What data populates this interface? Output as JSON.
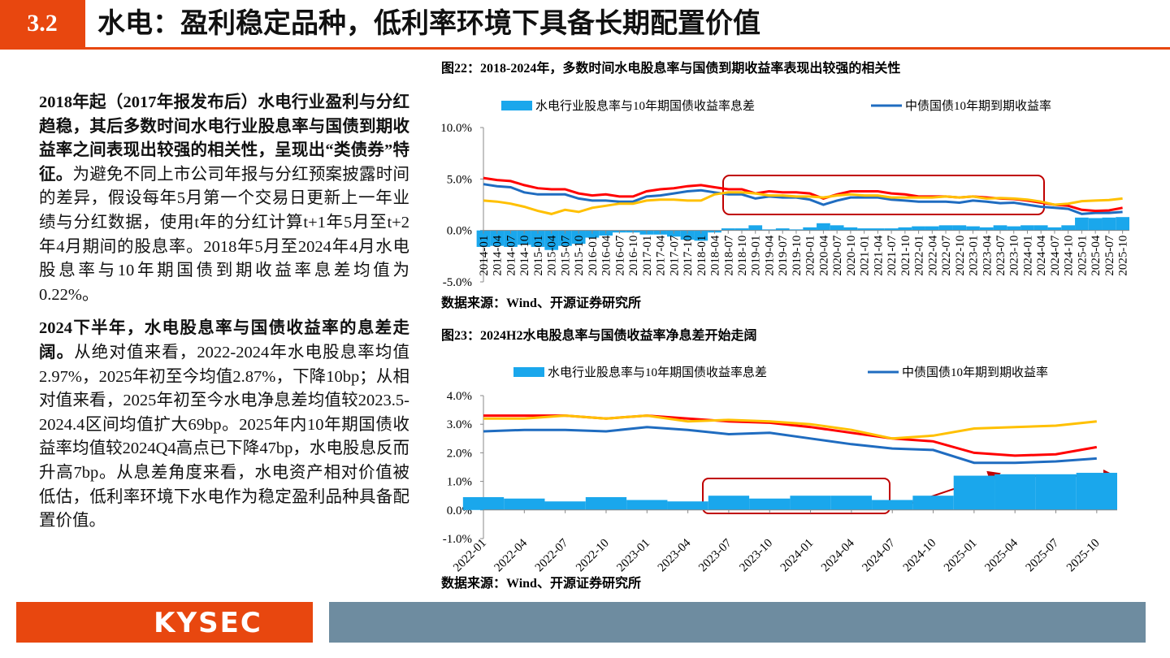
{
  "header": {
    "section": "3.2",
    "title": "水电：盈利稳定品种，低利率环境下具备长期配置价值"
  },
  "body": {
    "paragraphs": [
      {
        "bold": "2018年起（2017年报发布后）水电行业盈利与分红趋稳，其后多数时间水电行业股息率与国债到期收益率之间表现出较强的相关性，呈现出“类债券”特征。",
        "text": "为避免不同上市公司年报与分红预案披露时间的差异，假设每年5月第一个交易日更新上一年业绩与分红数据，使用t年的分红计算t+1年5月至t+2年4月期间的股息率。2018年5月至2024年4月水电股息率与10年期国债到期收益率息差均值为0.22%。"
      },
      {
        "bold": "2024下半年，水电股息率与国债收益率的息差走阔。",
        "text": "从绝对值来看，2022-2024年水电股息率均值2.97%，2025年初至今均值2.87%，下降10bp；从相对值来看，2025年初至今水电净息差均值较2023.5-2024.4区间均值扩大69bp。2025年内10年期国债收益率均值较2024Q4高点已下降47bp，水电股息反而升高7bp。从息差角度来看，水电资产相对价值被低估，低利率环境下水电作为稳定盈利品种具备配置价值。"
      }
    ]
  },
  "chart_data": [
    {
      "type": "line",
      "title": "图22：2018-2024年，多数时间水电股息率与国债到期收益率表现出较强的相关性",
      "source": "数据来源：Wind、开源证券研究所",
      "categories": [
        "2014-01",
        "2014-04",
        "2014-07",
        "2014-10",
        "2015-01",
        "2015-04",
        "2015-07",
        "2015-10",
        "2016-01",
        "2016-04",
        "2016-07",
        "2016-10",
        "2017-01",
        "2017-04",
        "2017-07",
        "2017-10",
        "2018-01",
        "2018-04",
        "2018-07",
        "2018-10",
        "2019-01",
        "2019-04",
        "2019-07",
        "2019-10",
        "2020-01",
        "2020-04",
        "2020-07",
        "2020-10",
        "2021-01",
        "2021-04",
        "2021-07",
        "2021-10",
        "2022-01",
        "2022-04",
        "2022-07",
        "2022-10",
        "2023-01",
        "2023-04",
        "2023-07",
        "2023-10",
        "2024-01",
        "2024-04",
        "2024-07",
        "2024-10",
        "2025-01",
        "2025-04",
        "2025-07",
        "2025-10"
      ],
      "ylim": [
        -5,
        10
      ],
      "yticks": [
        {
          "value": -5,
          "label": "-5.0%"
        },
        {
          "value": 0,
          "label": "0.0%"
        },
        {
          "value": 5,
          "label": "5.0%"
        },
        {
          "value": 10,
          "label": "10.0%"
        }
      ],
      "series": [
        {
          "name": "水电行业股息率与10年期国债收益率息差",
          "type": "bar",
          "color": "#1aa7ec",
          "values": [
            -1.6,
            -1.5,
            -1.6,
            -1.4,
            -1.6,
            -1.9,
            -1.5,
            -1.3,
            -0.7,
            -0.5,
            -0.2,
            -0.2,
            -0.4,
            -0.4,
            -0.6,
            -0.9,
            -1.0,
            -0.2,
            0.2,
            0.2,
            0.5,
            0.1,
            0.2,
            0.1,
            0.3,
            0.7,
            0.5,
            0.3,
            0.2,
            0.2,
            0.2,
            0.3,
            0.4,
            0.4,
            0.5,
            0.5,
            0.4,
            0.3,
            0.5,
            0.4,
            0.5,
            0.5,
            0.3,
            0.5,
            1.25,
            1.2,
            1.25,
            1.3
          ]
        },
        {
          "name": "中债国债10年期到期收益率",
          "type": "line",
          "color": "#1f6cc0",
          "values": [
            4.5,
            4.3,
            4.2,
            3.7,
            3.5,
            3.5,
            3.5,
            3.1,
            2.9,
            2.9,
            2.8,
            2.8,
            3.3,
            3.4,
            3.6,
            3.8,
            3.9,
            3.7,
            3.5,
            3.5,
            3.1,
            3.3,
            3.2,
            3.2,
            3.0,
            2.5,
            2.9,
            3.2,
            3.2,
            3.2,
            3.0,
            2.9,
            2.8,
            2.8,
            2.8,
            2.7,
            2.9,
            2.8,
            2.65,
            2.7,
            2.5,
            2.3,
            2.2,
            2.1,
            1.6,
            1.7,
            1.7,
            1.8
          ]
        },
        {
          "type": "line",
          "color": "#ff0000",
          "values": [
            5.1,
            4.9,
            4.8,
            4.4,
            4.1,
            4.0,
            4.0,
            3.6,
            3.4,
            3.5,
            3.3,
            3.3,
            3.8,
            4.0,
            4.1,
            4.3,
            4.4,
            4.2,
            4.0,
            4.0,
            3.6,
            3.8,
            3.7,
            3.7,
            3.6,
            3.1,
            3.5,
            3.8,
            3.8,
            3.8,
            3.6,
            3.5,
            3.3,
            3.3,
            3.3,
            3.2,
            3.3,
            3.2,
            3.1,
            3.05,
            2.9,
            2.7,
            2.5,
            2.4,
            2.0,
            1.9,
            1.95,
            2.2
          ]
        },
        {
          "type": "line",
          "color": "#ffc000",
          "values": [
            2.9,
            2.8,
            2.6,
            2.3,
            1.9,
            1.6,
            2.0,
            1.8,
            2.2,
            2.4,
            2.6,
            2.6,
            2.9,
            3.0,
            3.0,
            2.9,
            2.9,
            3.5,
            3.7,
            3.7,
            3.6,
            3.4,
            3.4,
            3.3,
            3.3,
            3.2,
            3.4,
            3.5,
            3.4,
            3.4,
            3.2,
            3.2,
            3.2,
            3.2,
            3.3,
            3.2,
            3.3,
            3.1,
            3.15,
            3.1,
            3.0,
            2.8,
            2.5,
            2.6,
            2.85,
            2.9,
            2.95,
            3.1
          ]
        }
      ]
    },
    {
      "type": "line",
      "title": "图23：2024H2水电股息率与国债收益率净息差开始走阔",
      "source": "数据来源：Wind、开源证券研究所",
      "categories": [
        "2022-01",
        "2022-04",
        "2022-07",
        "2022-10",
        "2023-01",
        "2023-04",
        "2023-07",
        "2023-10",
        "2024-01",
        "2024-04",
        "2024-07",
        "2024-10",
        "2025-01",
        "2025-04",
        "2025-07",
        "2025-10"
      ],
      "ylim": [
        -1,
        4
      ],
      "yticks": [
        {
          "value": -1,
          "label": "-1.0%"
        },
        {
          "value": 0,
          "label": "0.0%"
        },
        {
          "value": 1,
          "label": "1.0%"
        },
        {
          "value": 2,
          "label": "2.0%"
        },
        {
          "value": 3,
          "label": "3.0%"
        },
        {
          "value": 4,
          "label": "4.0%"
        }
      ],
      "series": [
        {
          "name": "水电行业股息率与10年期国债收益率息差",
          "type": "bar",
          "color": "#1aa7ec",
          "values": [
            0.45,
            0.4,
            0.3,
            0.45,
            0.35,
            0.3,
            0.5,
            0.4,
            0.5,
            0.5,
            0.35,
            0.5,
            1.2,
            1.25,
            1.25,
            1.3
          ]
        },
        {
          "name": "中债国债10年期到期收益率",
          "type": "line",
          "color": "#1f6cc0",
          "values": [
            2.75,
            2.8,
            2.8,
            2.75,
            2.9,
            2.8,
            2.65,
            2.7,
            2.5,
            2.3,
            2.15,
            2.1,
            1.65,
            1.65,
            1.7,
            1.8
          ]
        },
        {
          "type": "line",
          "color": "#ff0000",
          "values": [
            3.3,
            3.3,
            3.3,
            3.2,
            3.3,
            3.2,
            3.1,
            3.05,
            2.9,
            2.7,
            2.5,
            2.4,
            2.0,
            1.9,
            1.95,
            2.2
          ]
        },
        {
          "type": "line",
          "color": "#ffc000",
          "values": [
            3.2,
            3.2,
            3.3,
            3.2,
            3.3,
            3.1,
            3.15,
            3.1,
            3.0,
            2.8,
            2.5,
            2.6,
            2.85,
            2.9,
            2.95,
            3.1
          ]
        }
      ]
    }
  ],
  "footer": {
    "logo": "KYSEC"
  }
}
